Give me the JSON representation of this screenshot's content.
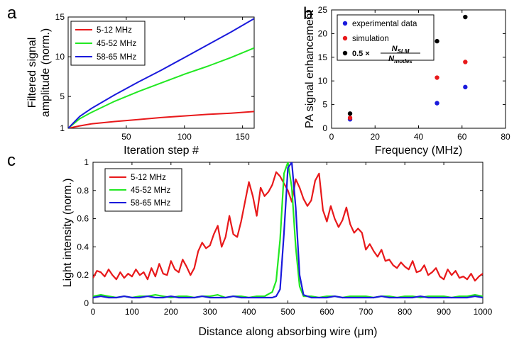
{
  "figure": {
    "panels": [
      {
        "letter": "a",
        "chart_data": {
          "type": "line",
          "ylabel": "Filtered signal\namplitude (norm.)",
          "xlabel": "Iteration step #",
          "xlim": [
            0,
            160
          ],
          "ylim": [
            1,
            15
          ],
          "xticks": [
            50,
            100,
            150
          ],
          "yticks": [
            1,
            5,
            10,
            15
          ],
          "ytick_labels": [
            "1",
            "5",
            "10",
            "15"
          ],
          "grid": false,
          "legend": "top-left",
          "series": [
            {
              "name": "5-12 MHz",
              "color": "#e8191b",
              "x": [
                0,
                10,
                20,
                40,
                60,
                80,
                100,
                120,
                140,
                160
              ],
              "y": [
                1,
                1.3,
                1.55,
                1.85,
                2.1,
                2.35,
                2.55,
                2.75,
                2.9,
                3.1
              ]
            },
            {
              "name": "45-52 MHz",
              "color": "#22e822",
              "x": [
                0,
                10,
                20,
                40,
                60,
                80,
                100,
                120,
                140,
                160
              ],
              "y": [
                1,
                2.2,
                3,
                4.4,
                5.6,
                6.7,
                7.8,
                8.8,
                9.9,
                11.1
              ]
            },
            {
              "name": "58-65 MHz",
              "color": "#1a1adc",
              "x": [
                0,
                10,
                20,
                40,
                60,
                80,
                100,
                120,
                140,
                160
              ],
              "y": [
                1,
                2.5,
                3.5,
                5.2,
                6.8,
                8.3,
                9.9,
                11.5,
                13.1,
                14.8
              ]
            }
          ]
        }
      },
      {
        "letter": "b",
        "chart_data": {
          "type": "scatter",
          "ylabel": "PA signal enhancement",
          "xlabel": "Frequency (MHz)",
          "xlim": [
            0,
            80
          ],
          "ylim": [
            0,
            25
          ],
          "xticks": [
            0,
            20,
            40,
            60,
            80
          ],
          "yticks": [
            0,
            5,
            10,
            15,
            20,
            25
          ],
          "grid": false,
          "legend": "top-left",
          "series": [
            {
              "name": "experimental data",
              "color": "#1a1adc",
              "x": [
                8.5,
                48.5,
                61.5
              ],
              "y": [
                1.9,
                5.3,
                8.7
              ]
            },
            {
              "name": "simulation",
              "color": "#e8191b",
              "x": [
                8.5,
                48.5,
                61.5
              ],
              "y": [
                2.2,
                10.7,
                14
              ]
            },
            {
              "name": "0.5 × N_SLM / N_modes",
              "color": "#000000",
              "x": [
                8.5,
                48.5,
                61.5
              ],
              "y": [
                3.1,
                18.4,
                23.5
              ]
            }
          ],
          "legend_formula": {
            "prefix": "0.5 ×",
            "numerator": "N",
            "numerator_sub": "SLM",
            "denominator": "N",
            "denominator_sub": "modes"
          }
        }
      },
      {
        "letter": "c",
        "chart_data": {
          "type": "line",
          "ylabel": "Light intensity (norm.)",
          "xlabel": "Distance along absorbing wire (μm)",
          "xlim": [
            0,
            1000
          ],
          "ylim": [
            0,
            1
          ],
          "xticks": [
            0,
            100,
            200,
            300,
            400,
            500,
            600,
            700,
            800,
            900,
            1000
          ],
          "yticks": [
            0,
            0.2,
            0.4,
            0.6,
            0.8,
            1
          ],
          "ytick_labels": [
            "0",
            "0.2",
            "0.4",
            "0.6",
            "0.8",
            "1"
          ],
          "grid": false,
          "legend": "top-left",
          "series": [
            {
              "name": "5-12 MHz",
              "color": "#e8191b",
              "x": [
                0,
                10,
                20,
                30,
                40,
                50,
                60,
                70,
                80,
                90,
                100,
                110,
                120,
                130,
                140,
                150,
                160,
                170,
                180,
                190,
                200,
                210,
                220,
                230,
                240,
                250,
                260,
                270,
                280,
                290,
                300,
                310,
                320,
                330,
                340,
                350,
                360,
                370,
                380,
                390,
                400,
                410,
                420,
                430,
                440,
                450,
                460,
                470,
                480,
                490,
                500,
                510,
                520,
                530,
                540,
                550,
                560,
                570,
                580,
                590,
                600,
                610,
                620,
                630,
                640,
                650,
                660,
                670,
                680,
                690,
                700,
                710,
                720,
                730,
                740,
                750,
                760,
                770,
                780,
                790,
                800,
                810,
                820,
                830,
                840,
                850,
                860,
                870,
                880,
                890,
                900,
                910,
                920,
                930,
                940,
                950,
                960,
                970,
                980,
                990,
                1000
              ],
              "y": [
                0.18,
                0.23,
                0.22,
                0.19,
                0.24,
                0.2,
                0.17,
                0.22,
                0.18,
                0.21,
                0.19,
                0.24,
                0.2,
                0.22,
                0.17,
                0.25,
                0.19,
                0.28,
                0.21,
                0.2,
                0.3,
                0.24,
                0.22,
                0.31,
                0.26,
                0.2,
                0.25,
                0.37,
                0.43,
                0.39,
                0.41,
                0.49,
                0.55,
                0.4,
                0.47,
                0.62,
                0.49,
                0.47,
                0.58,
                0.72,
                0.86,
                0.76,
                0.62,
                0.82,
                0.76,
                0.79,
                0.84,
                0.93,
                0.9,
                0.85,
                0.8,
                0.72,
                0.88,
                0.82,
                0.74,
                0.69,
                0.73,
                0.87,
                0.92,
                0.66,
                0.58,
                0.69,
                0.6,
                0.54,
                0.59,
                0.68,
                0.56,
                0.5,
                0.53,
                0.5,
                0.38,
                0.42,
                0.37,
                0.33,
                0.38,
                0.3,
                0.31,
                0.27,
                0.25,
                0.29,
                0.26,
                0.24,
                0.3,
                0.22,
                0.23,
                0.27,
                0.2,
                0.22,
                0.25,
                0.19,
                0.17,
                0.24,
                0.2,
                0.23,
                0.18,
                0.19,
                0.17,
                0.21,
                0.16,
                0.19,
                0.21
              ]
            },
            {
              "name": "45-52 MHz",
              "color": "#22e822",
              "x": [
                0,
                20,
                40,
                60,
                80,
                100,
                120,
                140,
                160,
                180,
                200,
                220,
                240,
                260,
                280,
                300,
                320,
                340,
                360,
                380,
                400,
                420,
                440,
                460,
                470,
                480,
                490,
                500,
                510,
                520,
                530,
                540,
                560,
                580,
                600,
                620,
                640,
                660,
                680,
                700,
                720,
                740,
                760,
                780,
                800,
                820,
                840,
                860,
                880,
                900,
                920,
                940,
                960,
                980,
                1000
              ],
              "y": [
                0.05,
                0.06,
                0.05,
                0.04,
                0.05,
                0.04,
                0.05,
                0.05,
                0.06,
                0.05,
                0.04,
                0.05,
                0.05,
                0.04,
                0.05,
                0.05,
                0.06,
                0.04,
                0.05,
                0.05,
                0.04,
                0.05,
                0.05,
                0.08,
                0.16,
                0.45,
                0.92,
                1.0,
                0.82,
                0.4,
                0.12,
                0.05,
                0.05,
                0.04,
                0.05,
                0.05,
                0.04,
                0.05,
                0.05,
                0.05,
                0.04,
                0.05,
                0.05,
                0.04,
                0.05,
                0.05,
                0.04,
                0.05,
                0.05,
                0.05,
                0.04,
                0.05,
                0.05,
                0.06,
                0.05
              ]
            },
            {
              "name": "58-65 MHz",
              "color": "#1a1adc",
              "x": [
                0,
                20,
                40,
                60,
                80,
                100,
                120,
                140,
                160,
                180,
                200,
                220,
                240,
                260,
                280,
                300,
                320,
                340,
                360,
                380,
                400,
                420,
                440,
                460,
                470,
                480,
                490,
                500,
                510,
                520,
                530,
                540,
                560,
                580,
                600,
                620,
                640,
                660,
                680,
                700,
                720,
                740,
                760,
                780,
                800,
                820,
                840,
                860,
                880,
                900,
                920,
                940,
                960,
                980,
                1000
              ],
              "y": [
                0.04,
                0.05,
                0.04,
                0.04,
                0.05,
                0.04,
                0.04,
                0.05,
                0.04,
                0.04,
                0.05,
                0.04,
                0.04,
                0.04,
                0.05,
                0.04,
                0.04,
                0.04,
                0.05,
                0.04,
                0.04,
                0.04,
                0.04,
                0.04,
                0.05,
                0.1,
                0.5,
                0.96,
                1.0,
                0.68,
                0.2,
                0.06,
                0.04,
                0.04,
                0.04,
                0.05,
                0.04,
                0.04,
                0.04,
                0.04,
                0.04,
                0.05,
                0.04,
                0.04,
                0.04,
                0.04,
                0.05,
                0.04,
                0.04,
                0.04,
                0.04,
                0.04,
                0.04,
                0.05,
                0.04
              ]
            }
          ]
        }
      }
    ]
  }
}
